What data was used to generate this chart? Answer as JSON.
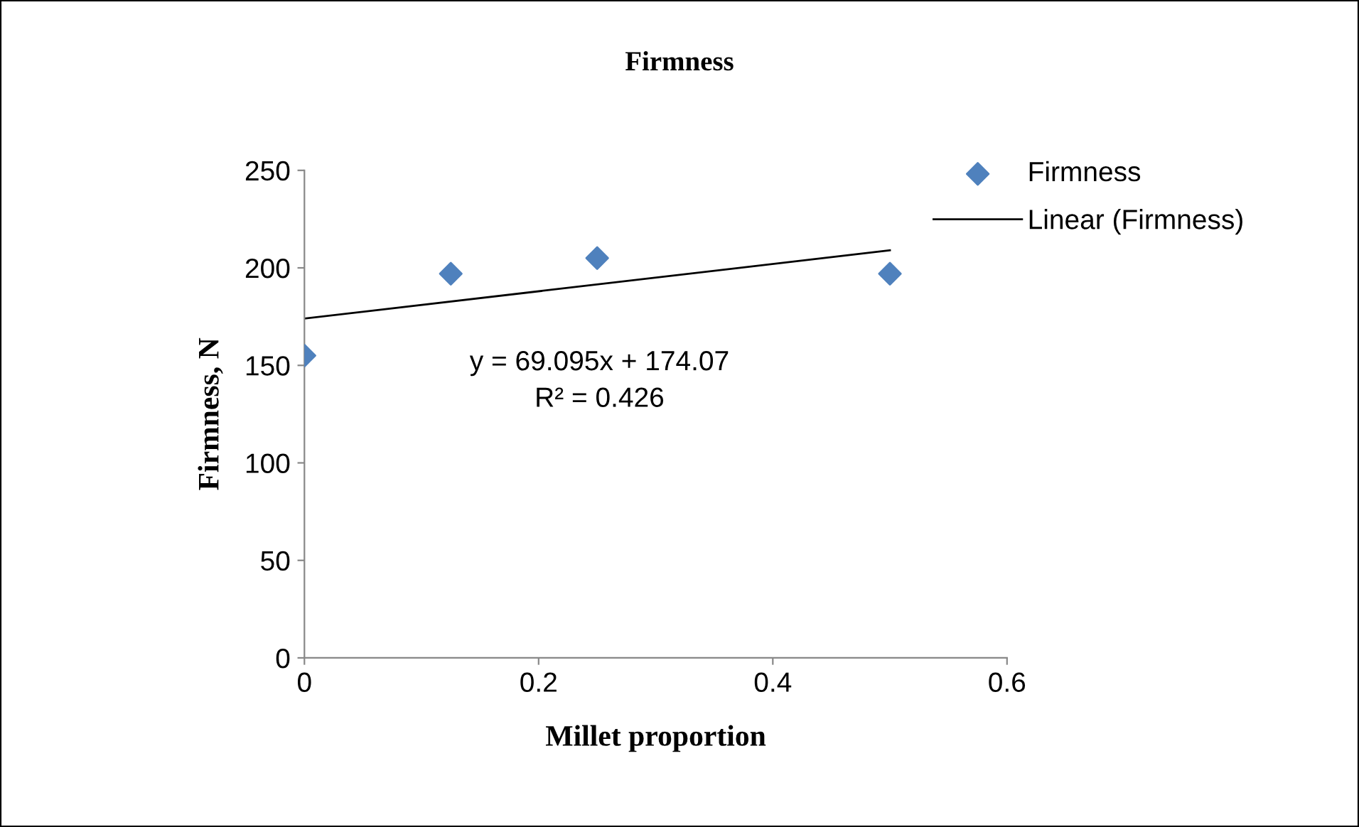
{
  "chart_data": {
    "type": "scatter",
    "title": "Firmness",
    "xlabel": "Millet proportion",
    "ylabel": "Firmness, N",
    "series": [
      {
        "name": "Firmness",
        "color": "#4f81bd",
        "marker": "diamond",
        "x": [
          0,
          0.125,
          0.25,
          0.5
        ],
        "values": [
          155,
          197,
          205,
          197
        ]
      },
      {
        "name": "Linear (Firmness)",
        "type": "line",
        "marker": "none",
        "color": "#000000",
        "x": [
          0,
          0.5
        ],
        "values": [
          174,
          209
        ]
      }
    ],
    "annotations": [
      "y = 69.095x + 174.07",
      "R² = 0.426"
    ],
    "xlim": [
      0,
      0.6
    ],
    "xticks": [
      0,
      0.2,
      0.4,
      0.6
    ],
    "ylim": [
      0,
      250
    ],
    "yticks": [
      0,
      50,
      100,
      150,
      200,
      250
    ],
    "line_style": "solid",
    "legend": "top right"
  }
}
